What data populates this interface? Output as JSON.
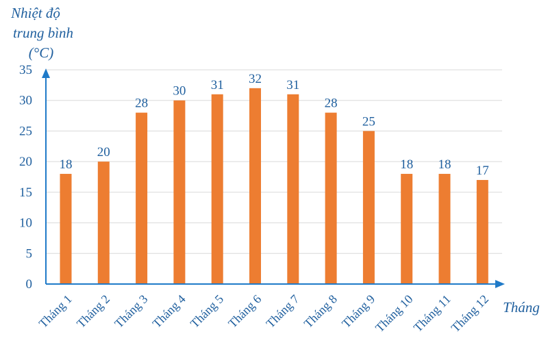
{
  "chart_data": {
    "type": "bar",
    "ylabel_lines": [
      "Nhiệt độ",
      "trung bình",
      "(°C)"
    ],
    "xlabel": "Tháng",
    "categories": [
      "Tháng 1",
      "Tháng 2",
      "Tháng 3",
      "Tháng 4",
      "Tháng 5",
      "Tháng 6",
      "Tháng 7",
      "Tháng 8",
      "Tháng 9",
      "Tháng 10",
      "Tháng 11",
      "Tháng 12"
    ],
    "values": [
      18,
      20,
      28,
      30,
      31,
      32,
      31,
      28,
      25,
      18,
      18,
      17
    ],
    "ylim": [
      0,
      35
    ],
    "yticks": [
      0,
      5,
      10,
      15,
      20,
      25,
      30,
      35
    ],
    "grid": true,
    "colors": {
      "bar": "#ED7D31",
      "axis": "#1F7AC8",
      "text": "#1F5F9E",
      "grid": "#D9D9D9"
    }
  }
}
